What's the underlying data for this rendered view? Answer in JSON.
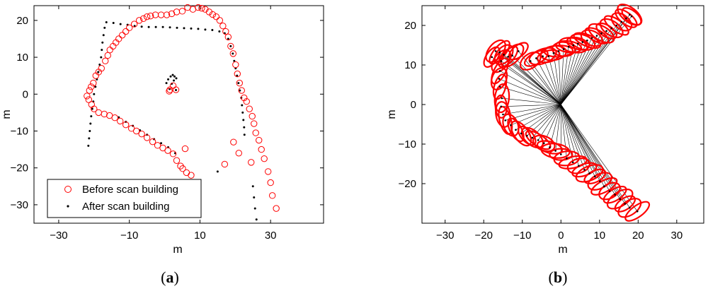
{
  "chart_data": [
    {
      "type": "scatter",
      "panel_label": "a",
      "xlabel": "m",
      "ylabel": "m",
      "xlim": [
        -37,
        45
      ],
      "ylim": [
        -35,
        24
      ],
      "xticks": [
        -30,
        -10,
        10,
        30
      ],
      "yticks": [
        -30,
        -20,
        -10,
        0,
        10,
        20
      ],
      "legend": {
        "position": "bottom-left"
      },
      "series": [
        {
          "name": "Before scan building",
          "marker": "open-circle",
          "color": "#ff0000",
          "points": [
            [
              -22,
              -0.5
            ],
            [
              -21.3,
              1
            ],
            [
              -20.8,
              2
            ],
            [
              -20.2,
              3
            ],
            [
              -19.5,
              5
            ],
            [
              -18.7,
              6
            ],
            [
              -17.9,
              7
            ],
            [
              -16.8,
              9
            ],
            [
              -16.1,
              10.5
            ],
            [
              -15.5,
              12
            ],
            [
              -14.6,
              13
            ],
            [
              -13.8,
              14
            ],
            [
              -13,
              15
            ],
            [
              -12,
              16
            ],
            [
              -11,
              17
            ],
            [
              -10,
              18
            ],
            [
              -8.6,
              19
            ],
            [
              -7.2,
              20
            ],
            [
              -6,
              20.5
            ],
            [
              -5,
              21
            ],
            [
              -4,
              21.2
            ],
            [
              -2.6,
              21.5
            ],
            [
              -1,
              21.5
            ],
            [
              0.6,
              21.5
            ],
            [
              2,
              21.8
            ],
            [
              3.4,
              22.3
            ],
            [
              5,
              22.5
            ],
            [
              6.5,
              23.5
            ],
            [
              8,
              23
            ],
            [
              9.5,
              23.5
            ],
            [
              10.5,
              23.3
            ],
            [
              11.5,
              23
            ],
            [
              12.6,
              22.3
            ],
            [
              13.6,
              21.6
            ],
            [
              14.6,
              21
            ],
            [
              15.6,
              20
            ],
            [
              16.5,
              18.5
            ],
            [
              17.3,
              17
            ],
            [
              18,
              15.5
            ],
            [
              18.7,
              13
            ],
            [
              19.4,
              11
            ],
            [
              20.1,
              8
            ],
            [
              20.6,
              5.5
            ],
            [
              21.2,
              3
            ],
            [
              21.8,
              1
            ],
            [
              22.5,
              -1
            ],
            [
              23.2,
              -2
            ],
            [
              24,
              -4
            ],
            [
              24.8,
              -6
            ],
            [
              25.3,
              -8
            ],
            [
              25.8,
              -10.5
            ],
            [
              26.7,
              -12.5
            ],
            [
              27.4,
              -15
            ],
            [
              28.2,
              -17.5
            ],
            [
              29.3,
              -21
            ],
            [
              30,
              -24
            ],
            [
              30.5,
              -27.5
            ],
            [
              31.6,
              -31
            ],
            [
              -21.5,
              -1.5
            ],
            [
              -20.7,
              -2.8
            ],
            [
              -20,
              -4
            ],
            [
              -18.7,
              -5
            ],
            [
              -17.1,
              -5.4
            ],
            [
              -15.6,
              -5.8
            ],
            [
              -14.1,
              -6.4
            ],
            [
              -12.6,
              -7.3
            ],
            [
              -11,
              -8.3
            ],
            [
              -9.4,
              -9.3
            ],
            [
              -8,
              -10
            ],
            [
              -6.5,
              -10.8
            ],
            [
              -5,
              -11.8
            ],
            [
              -3.4,
              -12.9
            ],
            [
              -2,
              -13.9
            ],
            [
              -0.5,
              -14.6
            ],
            [
              0.9,
              -15.3
            ],
            [
              2.4,
              -16.2
            ],
            [
              3.4,
              -18
            ],
            [
              4.5,
              -19.5
            ],
            [
              5.1,
              -20.2
            ],
            [
              6.2,
              -21.3
            ],
            [
              7.5,
              -22
            ],
            [
              1.5,
              1.2
            ],
            [
              5.8,
              -14.8
            ],
            [
              17,
              -19
            ],
            [
              19.5,
              -13
            ],
            [
              21,
              -16
            ],
            [
              24.5,
              -18.5
            ],
            [
              1.3,
              0.8
            ],
            [
              3.2,
              1.2
            ],
            [
              2.4,
              2.3
            ]
          ]
        },
        {
          "name": "After scan building",
          "marker": "dot",
          "color": "#000000",
          "points": [
            [
              -16.5,
              19.5
            ],
            [
              -14.5,
              19.3
            ],
            [
              -12.5,
              19
            ],
            [
              -10.5,
              18.8
            ],
            [
              -8.5,
              18.5
            ],
            [
              -6.5,
              18.3
            ],
            [
              -4.5,
              18.2
            ],
            [
              -2.5,
              18.2
            ],
            [
              -0.5,
              18.2
            ],
            [
              1.5,
              18.1
            ],
            [
              3.5,
              18
            ],
            [
              5.5,
              17.9
            ],
            [
              7.5,
              17.8
            ],
            [
              9.5,
              17.7
            ],
            [
              11.5,
              17.5
            ],
            [
              13.5,
              17.4
            ],
            [
              15.5,
              17
            ],
            [
              17,
              16.5
            ],
            [
              18,
              15
            ],
            [
              18.7,
              13
            ],
            [
              19.3,
              11
            ],
            [
              19.7,
              9
            ],
            [
              20.1,
              7
            ],
            [
              20.5,
              5
            ],
            [
              20.9,
              3
            ],
            [
              21.3,
              1
            ],
            [
              21.7,
              -1
            ],
            [
              21.9,
              -3
            ],
            [
              22.1,
              -5
            ],
            [
              22.3,
              -7
            ],
            [
              22.5,
              -9
            ],
            [
              22.6,
              -11
            ],
            [
              25,
              -25
            ],
            [
              25.3,
              -28
            ],
            [
              25.6,
              -31
            ],
            [
              26,
              -34
            ],
            [
              -17,
              18
            ],
            [
              -17.3,
              16
            ],
            [
              -17.6,
              14
            ],
            [
              -17.8,
              12
            ],
            [
              -18,
              10
            ],
            [
              -18.4,
              8
            ],
            [
              -18.8,
              6
            ],
            [
              -19.2,
              4
            ],
            [
              -19.6,
              2
            ],
            [
              -20,
              0
            ],
            [
              -20.2,
              -2
            ],
            [
              -20.5,
              -4
            ],
            [
              -20.8,
              -6
            ],
            [
              -21,
              -8
            ],
            [
              -21.2,
              -10
            ],
            [
              -21.4,
              -12
            ],
            [
              -21.6,
              -14
            ],
            [
              -13,
              -6.3
            ],
            [
              -11,
              -7.5
            ],
            [
              -9,
              -8.6
            ],
            [
              -7,
              -9.8
            ],
            [
              -5,
              -11
            ],
            [
              -3,
              -12.2
            ],
            [
              -1,
              -13.3
            ],
            [
              1,
              -14.4
            ],
            [
              3,
              -16
            ],
            [
              0.5,
              3
            ],
            [
              1,
              4
            ],
            [
              1.7,
              4.8
            ],
            [
              2.3,
              5.2
            ],
            [
              2.8,
              4.8
            ],
            [
              3.3,
              4.3
            ],
            [
              2.6,
              3.7
            ],
            [
              2,
              2.8
            ],
            [
              1.4,
              1.4
            ],
            [
              3.2,
              1.1
            ],
            [
              15,
              -21
            ]
          ]
        }
      ]
    },
    {
      "type": "scatter",
      "panel_label": "b",
      "xlabel": "m",
      "ylabel": "m",
      "xlim": [
        -36,
        37
      ],
      "ylim": [
        -30,
        25
      ],
      "xticks": [
        -30,
        -20,
        -10,
        0,
        10,
        20,
        30
      ],
      "yticks": [
        -20,
        -10,
        0,
        10,
        20
      ],
      "grid": false,
      "origin": [
        0,
        0
      ],
      "ellipse_color": "#ff0000",
      "points": [
        [
          -17.9,
          12
        ],
        [
          -16.9,
          13.5
        ],
        [
          -15.9,
          13.2
        ],
        [
          -14.8,
          12.6
        ],
        [
          -13.7,
          12.1
        ],
        [
          -12.6,
          12.4
        ],
        [
          -11,
          13.5
        ],
        [
          -15.5,
          11
        ],
        [
          -15.8,
          8.5
        ],
        [
          -16,
          6.5
        ],
        [
          -15.8,
          4.5
        ],
        [
          -15.3,
          1.6
        ],
        [
          -15.5,
          -0.5
        ],
        [
          -15,
          -2.5
        ],
        [
          -14.4,
          -4
        ],
        [
          -13,
          -5.2
        ],
        [
          -11.7,
          -6.4
        ],
        [
          -10.3,
          -7.3
        ],
        [
          -8.8,
          -7.9
        ],
        [
          -7.4,
          -8.4
        ],
        [
          -5.9,
          -9
        ],
        [
          -4.4,
          -9.8
        ],
        [
          -2.9,
          -10.8
        ],
        [
          -1.4,
          -11.7
        ],
        [
          0,
          -12.6
        ],
        [
          1.5,
          -13.6
        ],
        [
          3.1,
          -14.6
        ],
        [
          4.6,
          -15.5
        ],
        [
          6.1,
          -16.5
        ],
        [
          7.4,
          -17.4
        ],
        [
          8.8,
          -18.2
        ],
        [
          10.1,
          -19.4
        ],
        [
          11.2,
          -20.7
        ],
        [
          12.6,
          -21.9
        ],
        [
          14,
          -22.8
        ],
        [
          15.3,
          -23.9
        ],
        [
          16.6,
          -25.1
        ],
        [
          17.8,
          -26.1
        ],
        [
          19.8,
          -27
        ],
        [
          -7.9,
          11
        ],
        [
          -6.4,
          11.7
        ],
        [
          -4.7,
          12.2
        ],
        [
          -3.2,
          12.2
        ],
        [
          -1.9,
          13
        ],
        [
          -0.6,
          13.5
        ],
        [
          0.7,
          14
        ],
        [
          2,
          14.6
        ],
        [
          3.2,
          15
        ],
        [
          4.4,
          15.4
        ],
        [
          5.6,
          15.8
        ],
        [
          6.8,
          16.2
        ],
        [
          8,
          16.8
        ],
        [
          9.3,
          17.4
        ],
        [
          10.5,
          18
        ],
        [
          11.8,
          18.6
        ],
        [
          13.1,
          19.3
        ],
        [
          14.4,
          20
        ],
        [
          15.7,
          20.9
        ],
        [
          16.9,
          21.8
        ],
        [
          17.8,
          22.7
        ],
        [
          18.3,
          22.3
        ]
      ]
    }
  ]
}
